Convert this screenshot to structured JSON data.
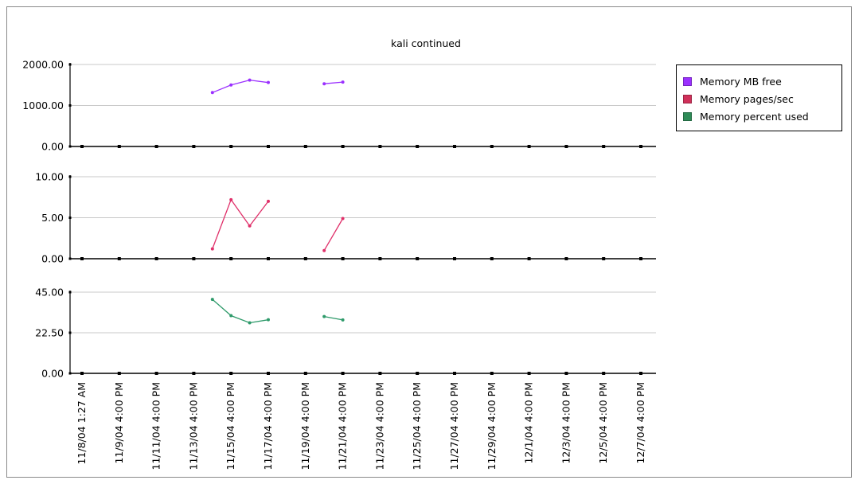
{
  "chart_data": {
    "type": "line",
    "title": "kali continued",
    "categories": [
      "11/8/04 1:27 AM",
      "11/9/04 4:00 PM",
      "11/11/04 4:00 PM",
      "11/13/04 4:00 PM",
      "11/15/04 4:00 PM",
      "11/17/04 4:00 PM",
      "11/19/04 4:00 PM",
      "11/21/04 4:00 PM",
      "11/23/04 4:00 PM",
      "11/25/04 4:00 PM",
      "11/27/04 4:00 PM",
      "11/29/04 4:00 PM",
      "12/1/04 4:00 PM",
      "12/3/04 4:00 PM",
      "12/5/04 4:00 PM",
      "12/7/04 4:00 PM"
    ],
    "grid": true,
    "legend_position": "right",
    "panels": [
      {
        "ylim": [
          0,
          2000
        ],
        "ticks": [
          "0.00",
          "1000.00",
          "2000.00"
        ],
        "series": [
          {
            "name": "Memory MB free",
            "color": "#9b30ff",
            "segments": [
              [
                [
                  "11/14/04",
                  1315
                ],
                [
                  "11/15/04 4:00 PM",
                  1500
                ],
                [
                  "11/16/04",
                  1620
                ],
                [
                  "11/17/04 4:00 PM",
                  1560
                ]
              ],
              [
                [
                  "11/20/04",
                  1530
                ],
                [
                  "11/21/04 4:00 PM",
                  1570
                ]
              ]
            ]
          }
        ]
      },
      {
        "ylim": [
          0,
          10
        ],
        "ticks": [
          "0.00",
          "5.00",
          "10.00"
        ],
        "series": [
          {
            "name": "Memory pages/sec",
            "color": "#e0306a",
            "segments": [
              [
                [
                  "11/14/04",
                  1.2
                ],
                [
                  "11/15/04 4:00 PM",
                  7.2
                ],
                [
                  "11/16/04",
                  4.0
                ],
                [
                  "11/17/04 4:00 PM",
                  7.0
                ]
              ],
              [
                [
                  "11/20/04",
                  1.0
                ],
                [
                  "11/21/04 4:00 PM",
                  4.9
                ]
              ]
            ]
          }
        ]
      },
      {
        "ylim": [
          0,
          45
        ],
        "ticks": [
          "0.00",
          "22.50",
          "45.00"
        ],
        "series": [
          {
            "name": "Memory percent used",
            "color": "#2e9a6a",
            "segments": [
              [
                [
                  "11/14/04",
                  41.0
                ],
                [
                  "11/15/04 4:00 PM",
                  32.0
                ],
                [
                  "11/16/04",
                  28.0
                ],
                [
                  "11/17/04 4:00 PM",
                  29.7
                ]
              ],
              [
                [
                  "11/20/04",
                  31.5
                ],
                [
                  "11/21/04 4:00 PM",
                  29.6
                ]
              ]
            ]
          }
        ]
      }
    ],
    "legend": [
      {
        "label": "Memory MB free",
        "color": "#9b30ff"
      },
      {
        "label": "Memory pages/sec",
        "color": "#d0305a"
      },
      {
        "label": "Memory percent used",
        "color": "#2e8b57"
      }
    ]
  }
}
